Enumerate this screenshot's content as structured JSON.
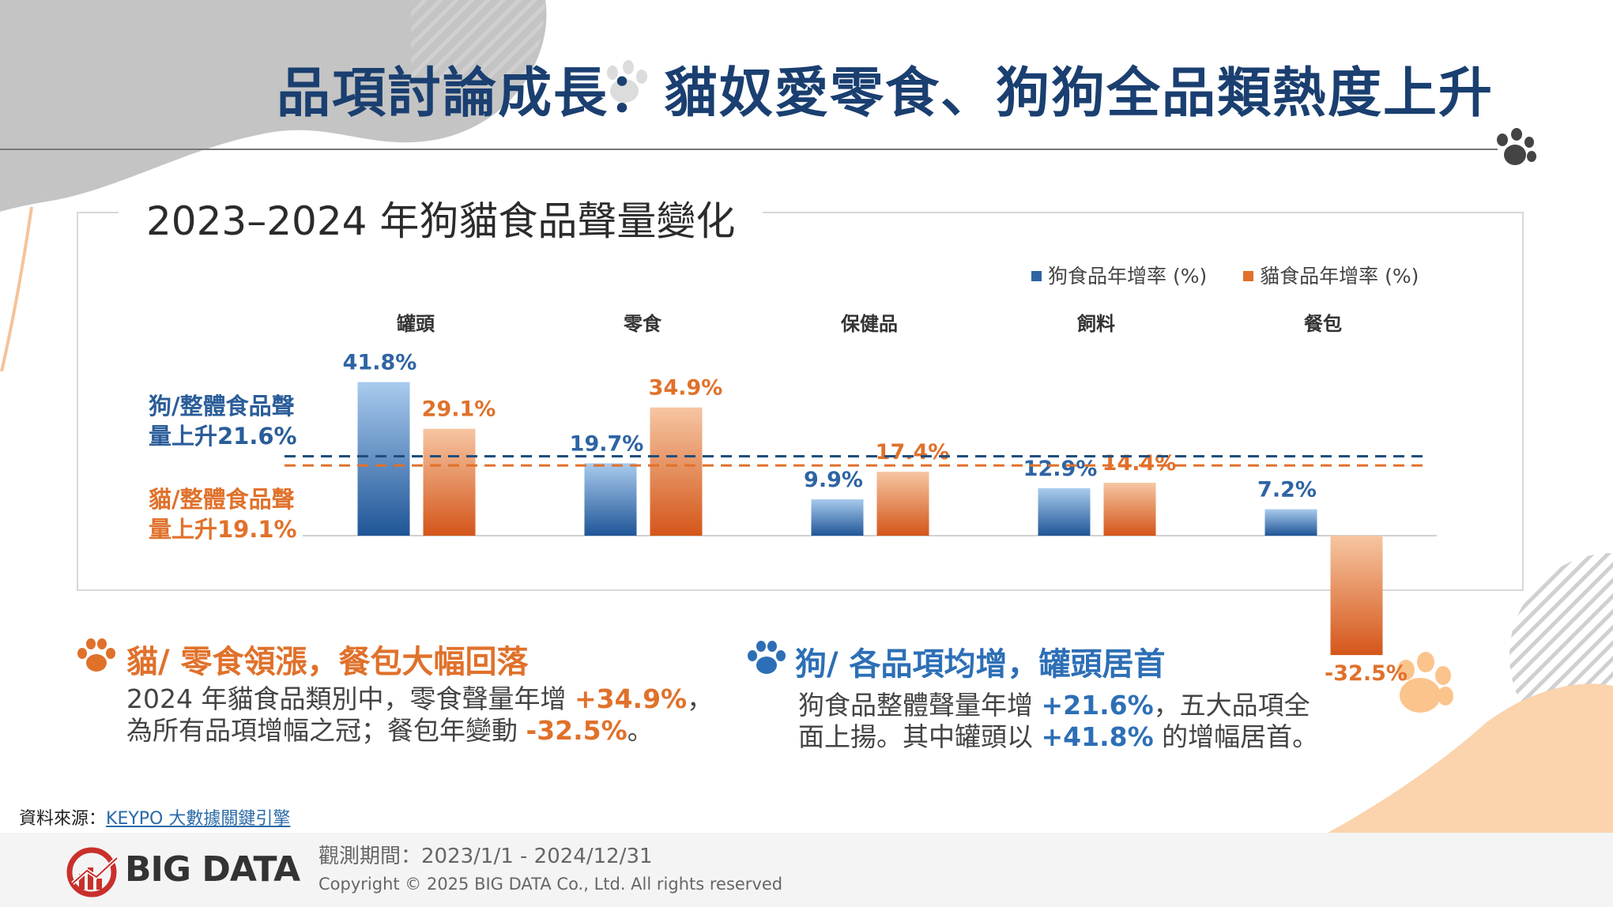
{
  "page_title": "品項討論成長：貓奴愛零食、狗狗全品類熱度上升",
  "chart_data": {
    "type": "bar",
    "title": "2023–2024 年狗貓食品聲量變化",
    "categories": [
      "罐頭",
      "零食",
      "保健品",
      "飼料",
      "餐包"
    ],
    "series": [
      {
        "name": "狗食品年增率 (%)",
        "color": "#2e64a3",
        "values": [
          41.8,
          19.7,
          9.9,
          12.9,
          7.2
        ]
      },
      {
        "name": "貓食品年增率 (%)",
        "color": "#e0712b",
        "values": [
          29.1,
          34.9,
          17.4,
          14.4,
          -32.5
        ]
      }
    ],
    "value_labels": {
      "dog": [
        "41.8%",
        "19.7%",
        "9.9%",
        "12.9%",
        "7.2%"
      ],
      "cat": [
        "29.1%",
        "34.9%",
        "17.4%",
        "14.4%",
        "-32.5%"
      ]
    },
    "reference_lines": [
      {
        "name": "dog-overall",
        "value": 21.6,
        "label": "狗/整體食品聲量上升21.6%",
        "color": "#1f4f7d"
      },
      {
        "name": "cat-overall",
        "value": 19.1,
        "label": "貓/整體食品聲量上升19.1%",
        "color": "#e0712b"
      }
    ],
    "ylim": [
      -32.5,
      41.8
    ],
    "legend_position": "top-right",
    "xlabel": "",
    "ylabel": ""
  },
  "cat_section": {
    "title": "貓/ 零食領漲，餐包大幅回落",
    "line1_pre": "2024 年貓食品類別中，零食聲量年增 ",
    "line1_hl": "+34.9%",
    "line1_post": "，",
    "line2_pre": "為所有品項增幅之冠；餐包年變動 ",
    "line2_hl": "-32.5%",
    "line2_post": "。"
  },
  "dog_section": {
    "title": "狗/ 各品項均增，罐頭居首",
    "line1_pre": "狗食品整體聲量年增 ",
    "line1_hl": "+21.6%",
    "line1_post": "，五大品項全",
    "line2_pre": "面上揚。其中罐頭以 ",
    "line2_hl": "+41.8%",
    "line2_post": " 的增幅居首。"
  },
  "source": {
    "label": "資料來源：",
    "link_text": "KEYPO 大數據關鍵引擎"
  },
  "footer": {
    "logo_text": "BIG DATA",
    "period": "觀測期間：2023/1/1 - 2024/12/31",
    "copyright": "Copyright © 2025 BIG DATA Co., Ltd. All rights reserved"
  },
  "colors": {
    "title": "#1a3f70",
    "dog": "#2e64a3",
    "cat": "#e0712b"
  }
}
